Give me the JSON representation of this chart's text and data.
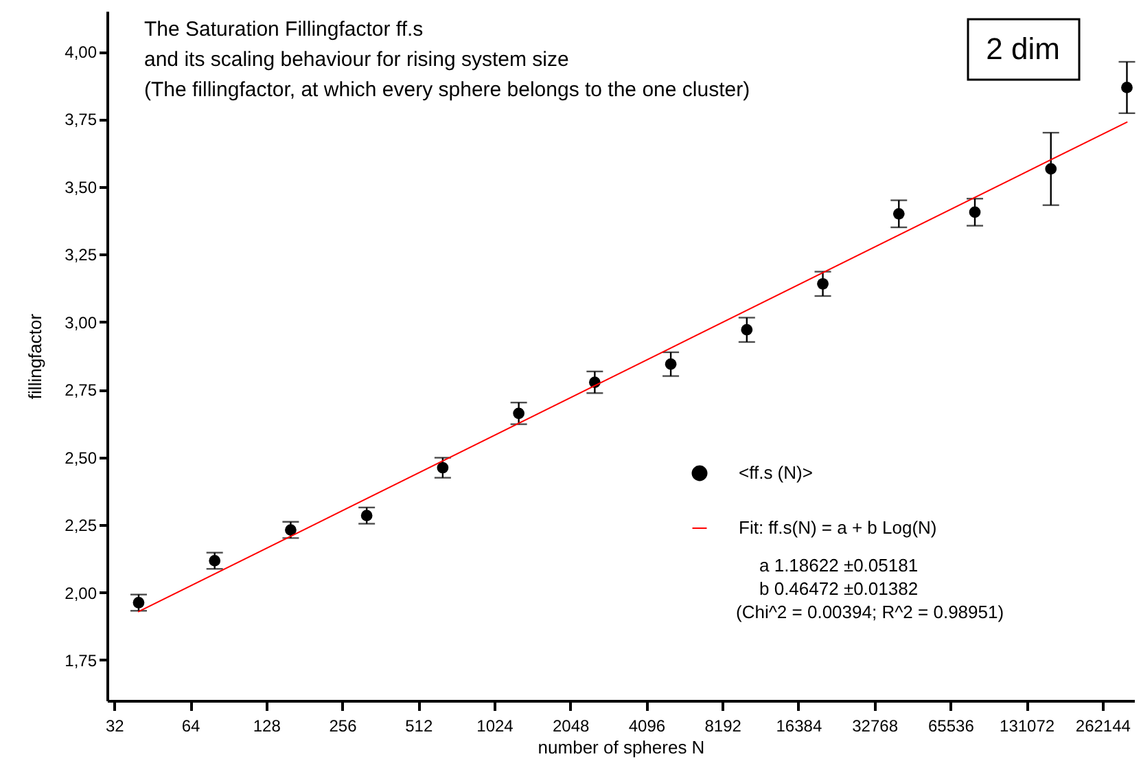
{
  "chart_data": {
    "type": "scatter",
    "title": "The Saturation Fillingfactor ff.s",
    "subtitle": "and its scaling behaviour for rising system size\n(The fillingfactor, at which every sphere belongs to the one cluster)",
    "xlabel": "number of spheres N",
    "ylabel": "fillingfactor",
    "x": [
      40,
      80,
      160,
      320,
      640,
      1280,
      2560,
      5120,
      10240,
      20480,
      40960,
      81920,
      163840,
      327680
    ],
    "series": [
      {
        "name": "<ff.s (N)>",
        "marker": "circle",
        "color": "#000000",
        "values": [
          1.962,
          2.117,
          2.231,
          2.284,
          2.461,
          2.662,
          2.777,
          2.844,
          2.971,
          3.141,
          3.4,
          3.406,
          3.566,
          3.867
        ],
        "errors": [
          0.03,
          0.03,
          0.03,
          0.03,
          0.037,
          0.04,
          0.04,
          0.044,
          0.045,
          0.045,
          0.05,
          0.05,
          0.134,
          0.095
        ]
      },
      {
        "name": "Fit: ff.s(N) = a + b Log(N)",
        "type": "line",
        "marker": "none",
        "color": "#ff0000",
        "x": [
          40,
          327680
        ],
        "values": [
          1.929,
          3.739
        ]
      }
    ],
    "annotations": [
      "2 dim",
      "a 1.18622 ±0.05181",
      "b 0.46472 ±0.01382",
      "(Chi^2 = 0.00394;  R^2 = 0.98951)"
    ],
    "log": "x",
    "grid": false,
    "legend": "right",
    "xlim": [
      30,
      350000
    ],
    "xticks": [
      32,
      64,
      128,
      256,
      512,
      1024,
      2048,
      4096,
      8192,
      16384,
      32768,
      65536,
      131072,
      262144
    ],
    "ylim": [
      1.6,
      4.15
    ],
    "yticks": [
      {
        "value": 1.75,
        "label": "1,75"
      },
      {
        "value": 2.0,
        "label": "2,00"
      },
      {
        "value": 2.25,
        "label": "2,25"
      },
      {
        "value": 2.5,
        "label": "2,50"
      },
      {
        "value": 2.75,
        "label": "2,75"
      },
      {
        "value": 3.0,
        "label": "3,00"
      },
      {
        "value": 3.25,
        "label": "3,25"
      },
      {
        "value": 3.5,
        "label": "3,50"
      },
      {
        "value": 3.75,
        "label": "3,75"
      },
      {
        "value": 4.0,
        "label": "4,00"
      }
    ]
  }
}
